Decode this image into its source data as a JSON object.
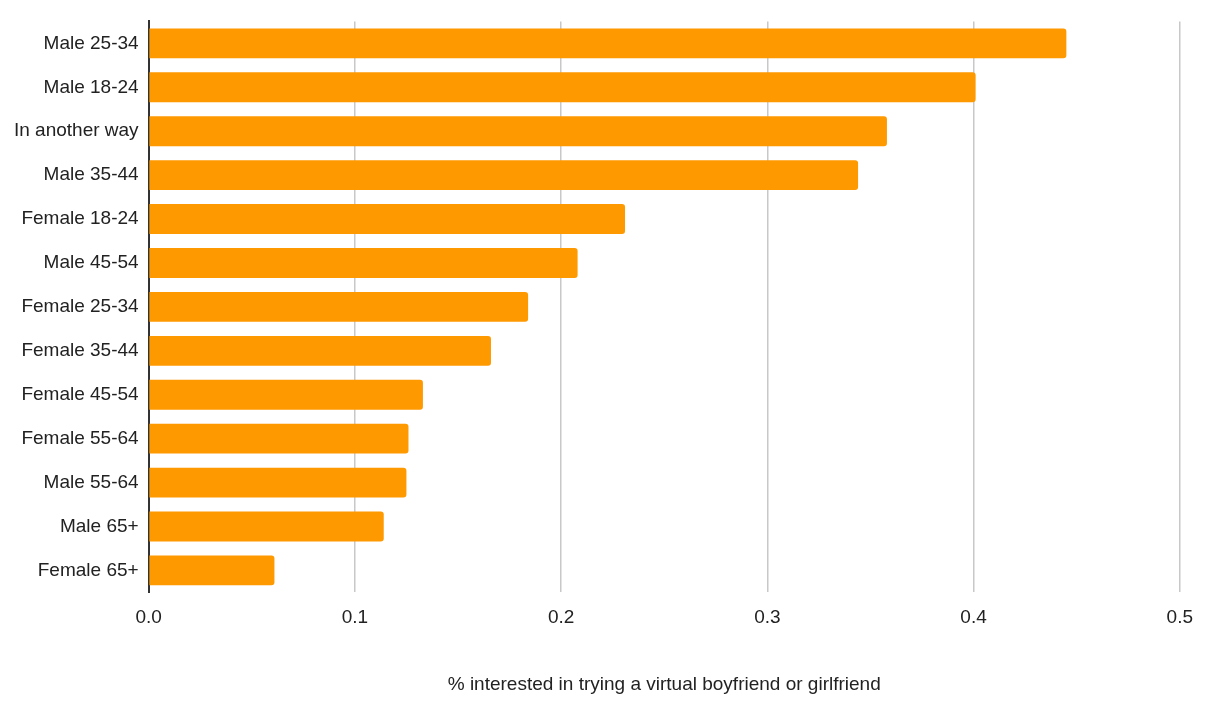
{
  "chart_data": {
    "type": "bar",
    "orientation": "horizontal",
    "xlabel": "% interested in trying a virtual boyfriend or girlfriend",
    "categories": [
      "Male 25-34",
      "Male 18-24",
      "In another way",
      "Male 35-44",
      "Female 18-24",
      "Male 45-54",
      "Female 25-34",
      "Female 35-44",
      "Female 45-54",
      "Female 55-64",
      "Male 55-64",
      "Male 65+",
      "Female 65+"
    ],
    "values": [
      0.445,
      0.401,
      0.358,
      0.344,
      0.231,
      0.208,
      0.184,
      0.166,
      0.133,
      0.126,
      0.125,
      0.114,
      0.061
    ],
    "color": "#ff9900",
    "xlim": [
      0,
      0.5
    ],
    "xticks": [
      {
        "value": 0,
        "label": "0.0"
      },
      0.1,
      0.2,
      0.3,
      0.4,
      0.5
    ],
    "grid": "x",
    "legend": false
  }
}
